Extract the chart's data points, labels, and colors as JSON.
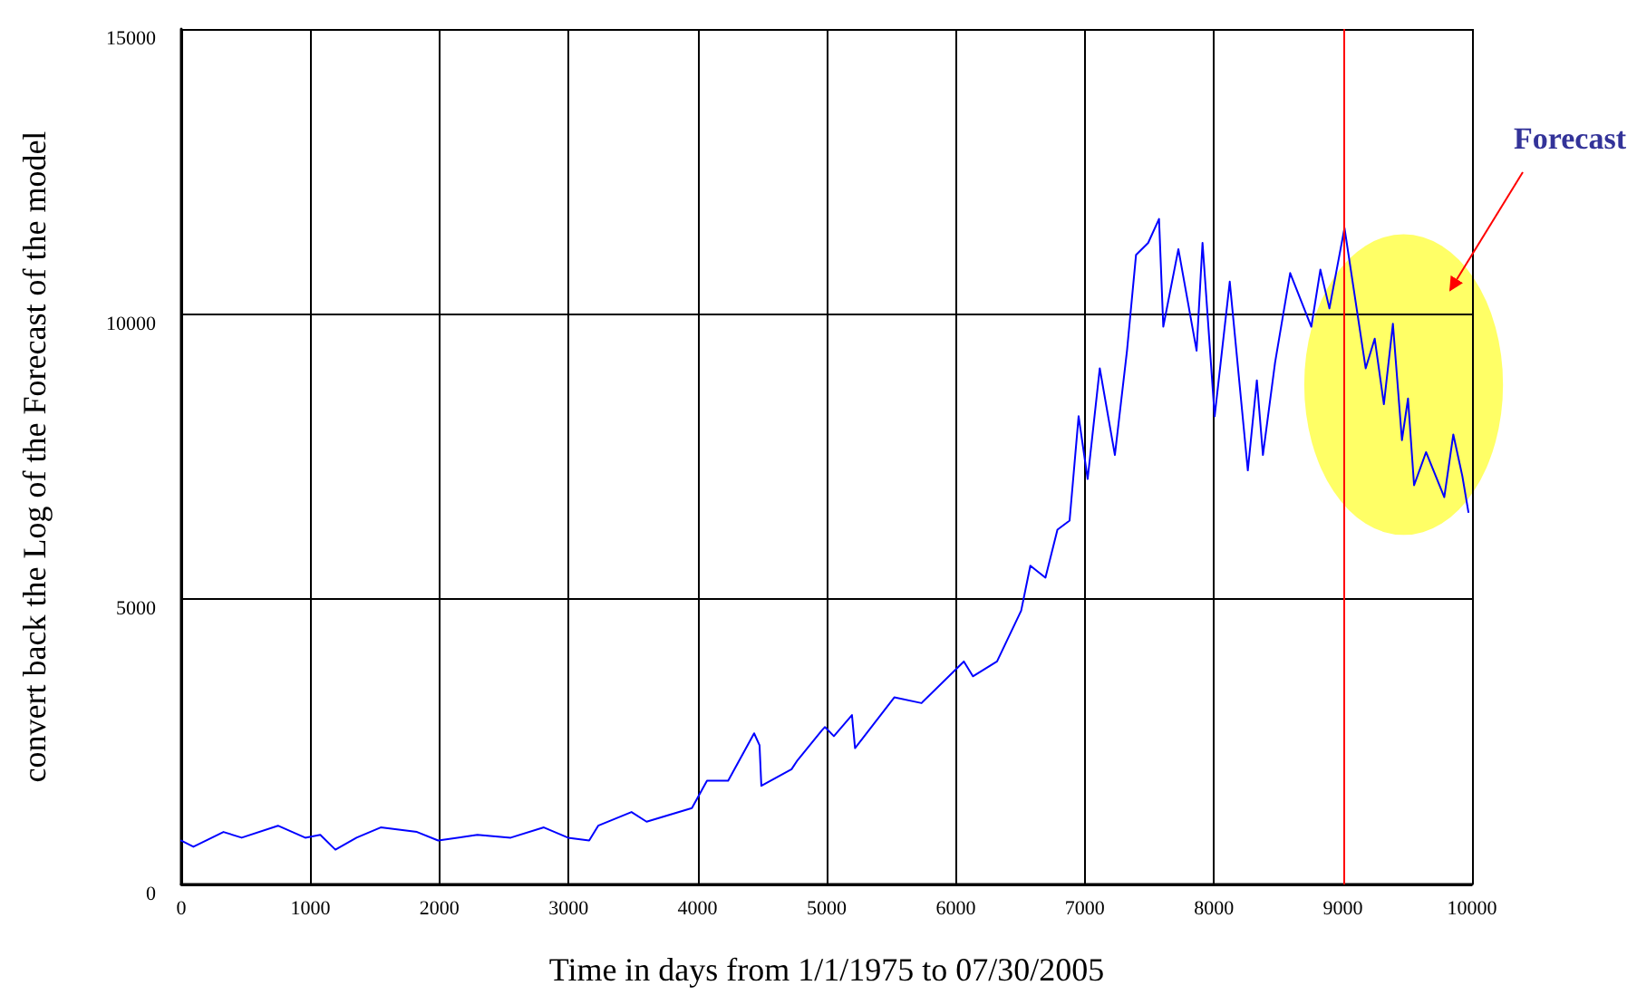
{
  "chart_data": {
    "type": "line",
    "xlabel": "Time in days from 1/1/1975 to 07/30/2005",
    "ylabel": "convert back the Log of the Forecast of the model",
    "annotations": [
      "Forecast"
    ],
    "x": [
      0,
      94,
      327,
      468,
      749,
      960,
      1077,
      1194,
      1358,
      1545,
      1826,
      1990,
      2294,
      2552,
      2809,
      2996,
      3160,
      3230,
      3488,
      3605,
      3956,
      4073,
      4237,
      4438,
      4480,
      4494,
      4728,
      4775,
      4962,
      4986,
      5056,
      5196,
      5220,
      5524,
      5735,
      6063,
      6133,
      6320,
      6507,
      6578,
      6695,
      6788,
      6882,
      6952,
      7022,
      7116,
      7233,
      7327,
      7397,
      7491,
      7575,
      7608,
      7725,
      7866,
      7912,
      8006,
      8123,
      8263,
      8333,
      8380,
      8474,
      8591,
      8755,
      8825,
      8895,
      9012,
      9106,
      9176,
      9246,
      9317,
      9387,
      9457,
      9504,
      9551,
      9644,
      9785,
      9855,
      9925,
      9972
    ],
    "series": [
      {
        "color": "#0000ff",
        "values": [
          770,
          660,
          920,
          820,
          1030,
          820,
          870,
          610,
          820,
          1000,
          920,
          770,
          870,
          820,
          1000,
          820,
          770,
          1030,
          1270,
          1100,
          1340,
          1820,
          1820,
          2650,
          2440,
          1730,
          2020,
          2180,
          2700,
          2760,
          2600,
          2970,
          2390,
          3280,
          3180,
          3910,
          3650,
          3910,
          4800,
          5590,
          5380,
          6220,
          6380,
          8210,
          7110,
          9050,
          7530,
          9360,
          11040,
          11250,
          11670,
          9780,
          11140,
          9360,
          11250,
          8210,
          10570,
          7260,
          8840,
          7530,
          9150,
          10720,
          9780,
          10780,
          10100,
          11510,
          10100,
          9050,
          9570,
          8420,
          9830,
          7790,
          8520,
          7000,
          7580,
          6790,
          7890,
          7160,
          6530
        ]
      }
    ],
    "xlim": [
      0,
      10000
    ],
    "xticks": [
      0,
      1000,
      2000,
      3000,
      4000,
      5000,
      6000,
      7000,
      8000,
      9000,
      10000
    ],
    "ylim": [
      0,
      15000
    ],
    "yticks": [
      0,
      5000,
      10000,
      15000
    ],
    "grid": true,
    "marker": "none",
    "line_style": "solid",
    "ref_lines": [
      {
        "axis": "x",
        "value": 9000,
        "color": "#ff0000"
      }
    ]
  }
}
